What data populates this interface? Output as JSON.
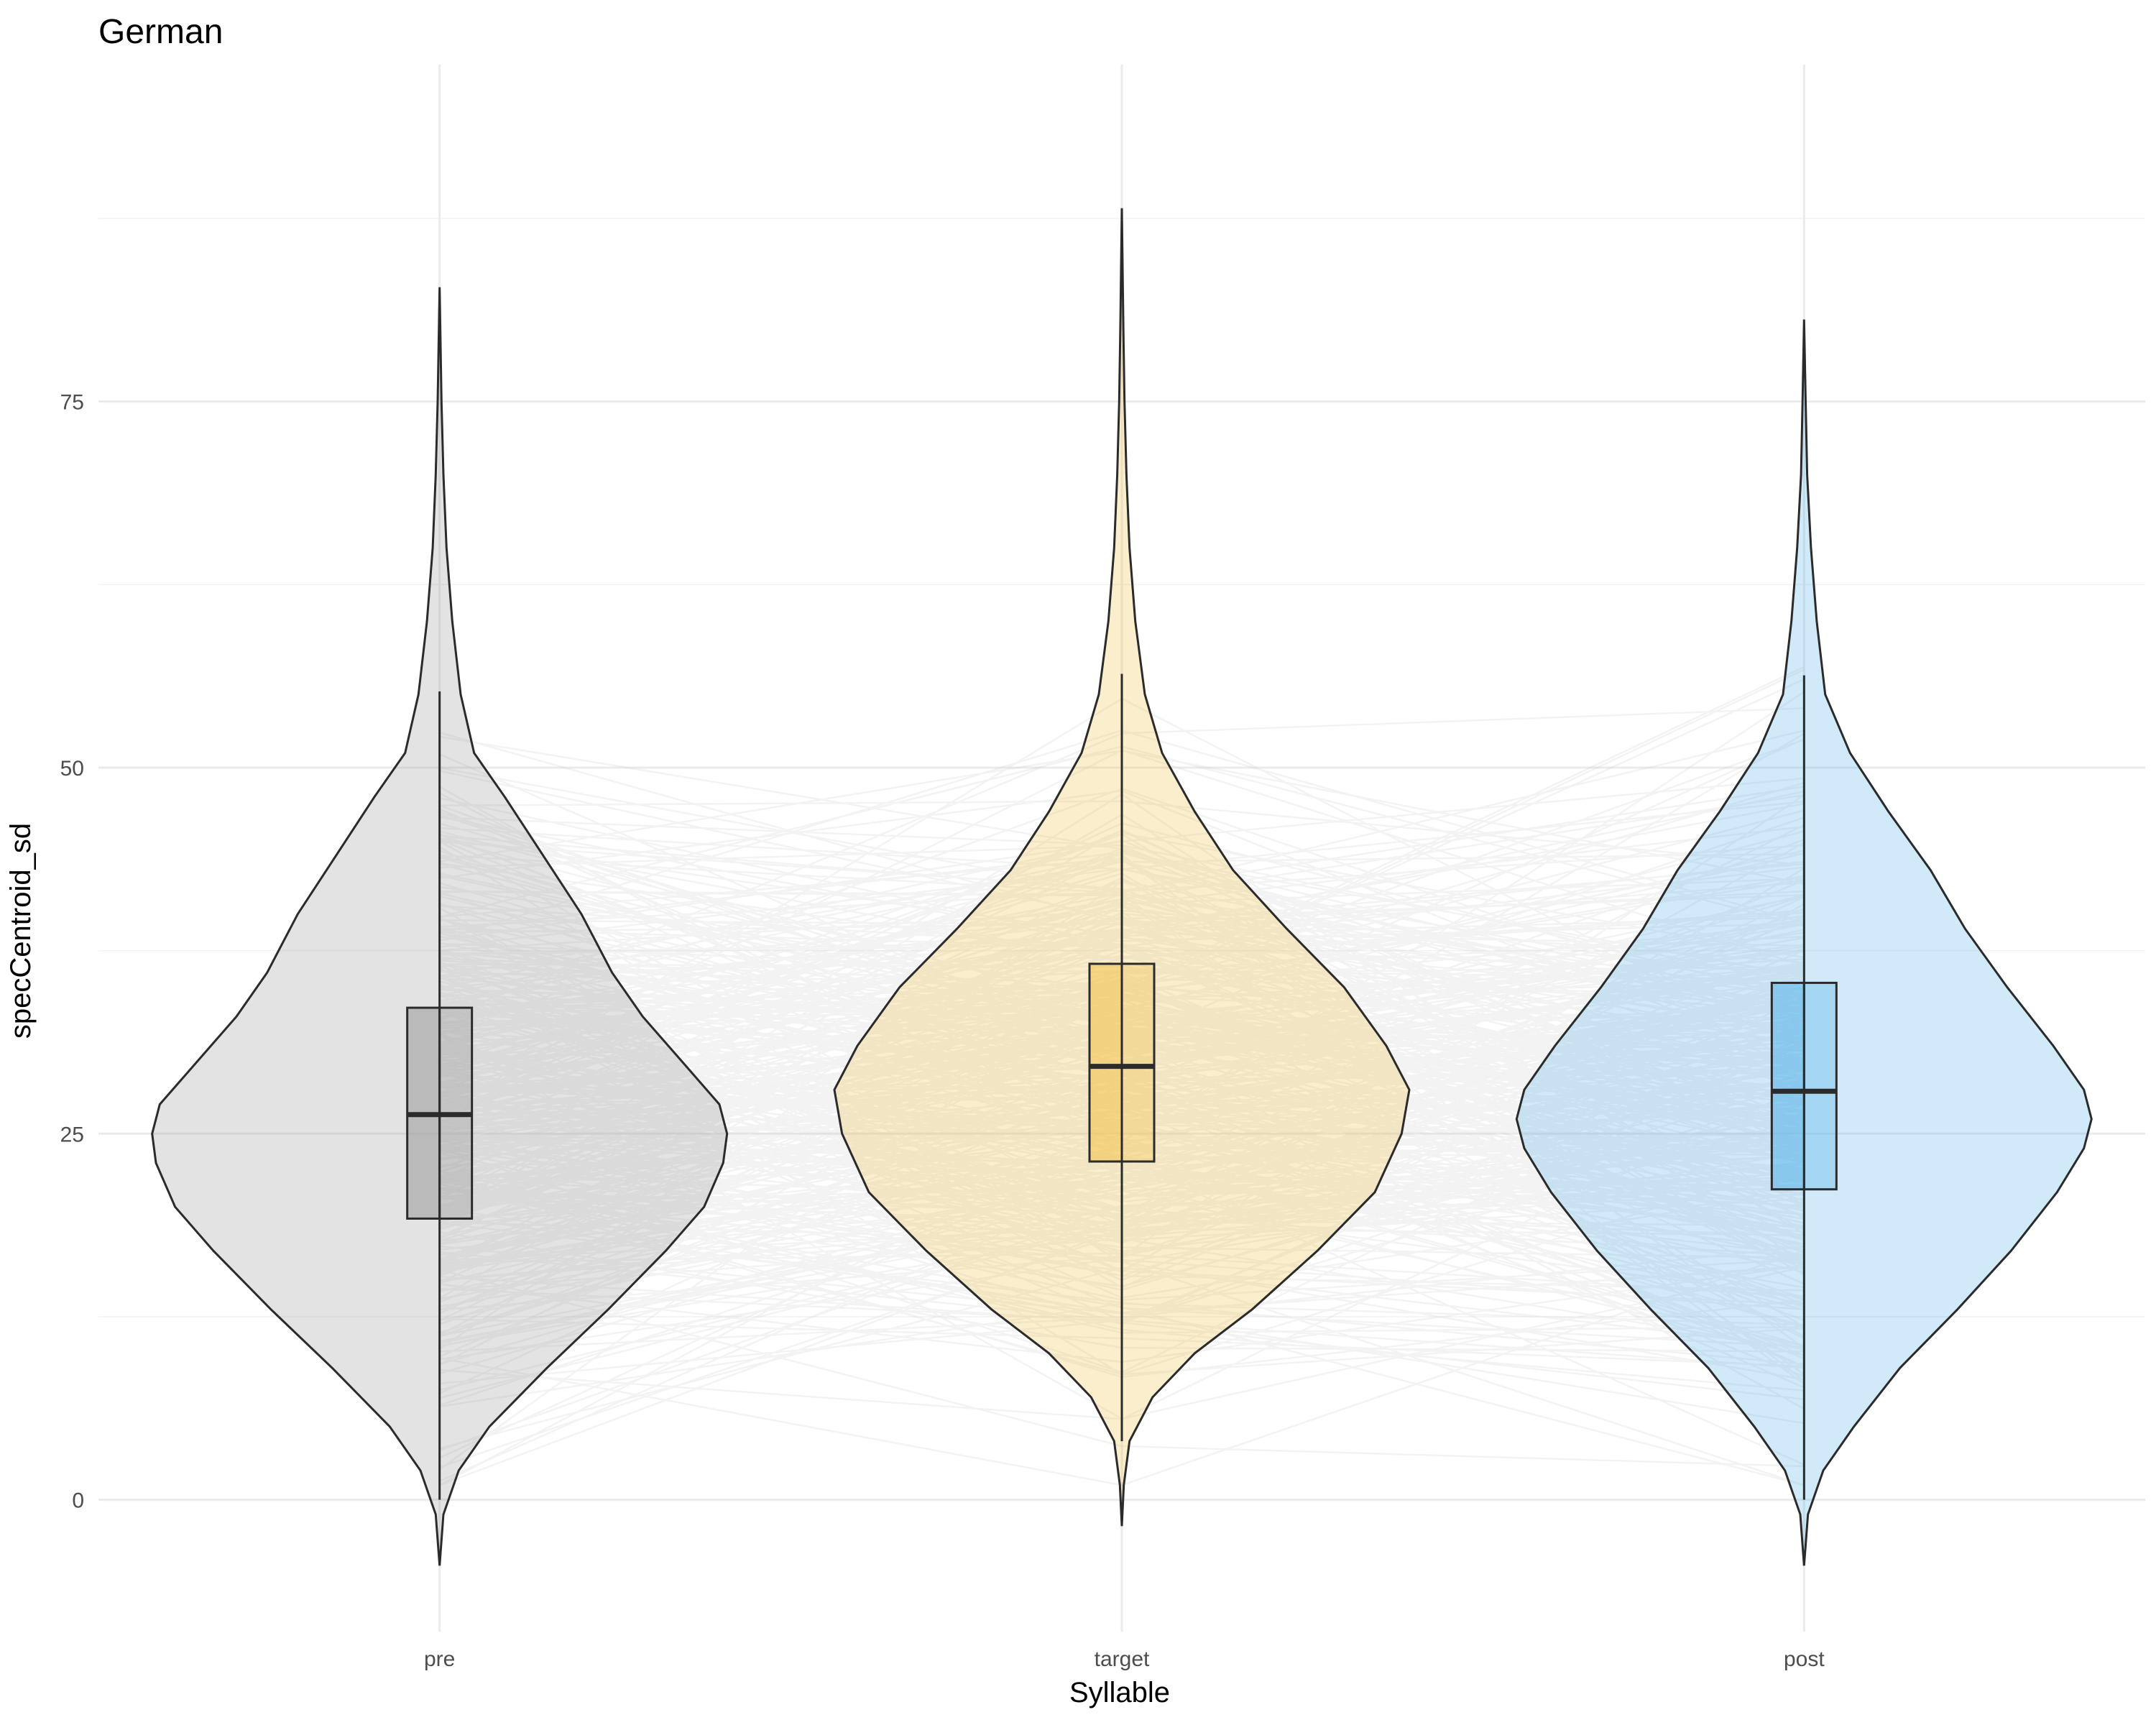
{
  "chart_data": {
    "type": "violin",
    "title": "German",
    "xlabel": "Syllable",
    "ylabel": "specCentroid_sd",
    "categories": [
      "pre",
      "target",
      "post"
    ],
    "y_ticks": [
      0,
      25,
      50,
      75
    ],
    "ylim": [
      -9,
      98
    ],
    "grid": true,
    "legend": "none",
    "groups": [
      {
        "category": "pre",
        "fill": "#999999",
        "box": {
          "whisker_low": 0,
          "q1": 19.2,
          "median": 26.3,
          "q3": 33.6,
          "whisker_high": 55.2
        },
        "violin_min": -4.5,
        "violin_max": 82.8,
        "density_profile": [
          [
            -4.5,
            0.0
          ],
          [
            -1,
            0.1
          ],
          [
            2,
            0.5
          ],
          [
            5,
            1.3
          ],
          [
            9,
            2.8
          ],
          [
            13,
            4.4
          ],
          [
            17,
            5.9
          ],
          [
            20,
            6.9
          ],
          [
            23,
            7.4
          ],
          [
            25,
            7.5
          ],
          [
            27,
            7.3
          ],
          [
            30,
            6.3
          ],
          [
            33,
            5.3
          ],
          [
            36,
            4.5
          ],
          [
            40,
            3.7
          ],
          [
            44,
            2.7
          ],
          [
            48,
            1.7
          ],
          [
            51,
            0.9
          ],
          [
            55,
            0.55
          ],
          [
            60,
            0.33
          ],
          [
            65,
            0.18
          ],
          [
            70,
            0.1
          ],
          [
            75,
            0.05
          ],
          [
            82.8,
            0.0
          ]
        ]
      },
      {
        "category": "target",
        "fill": "#f0c24a",
        "box": {
          "whisker_low": 4,
          "q1": 23.1,
          "median": 29.6,
          "q3": 36.6,
          "whisker_high": 56.4
        },
        "violin_min": -1.8,
        "violin_max": 88.2,
        "density_profile": [
          [
            -1.8,
            0.0
          ],
          [
            1,
            0.05
          ],
          [
            4,
            0.2
          ],
          [
            7,
            0.8
          ],
          [
            10,
            1.9
          ],
          [
            13,
            3.4
          ],
          [
            17,
            5.1
          ],
          [
            21,
            6.6
          ],
          [
            25,
            7.3
          ],
          [
            28,
            7.5
          ],
          [
            31,
            6.9
          ],
          [
            35,
            5.8
          ],
          [
            39,
            4.3
          ],
          [
            43,
            2.9
          ],
          [
            47,
            1.9
          ],
          [
            51,
            1.05
          ],
          [
            55,
            0.6
          ],
          [
            60,
            0.35
          ],
          [
            65,
            0.2
          ],
          [
            70,
            0.12
          ],
          [
            75,
            0.07
          ],
          [
            80,
            0.04
          ],
          [
            88.2,
            0.0
          ]
        ]
      },
      {
        "category": "post",
        "fill": "#56b4e9",
        "box": {
          "whisker_low": 0,
          "q1": 21.2,
          "median": 27.9,
          "q3": 35.3,
          "whisker_high": 56.3
        },
        "violin_min": -4.5,
        "violin_max": 80.6,
        "density_profile": [
          [
            -4.5,
            0.0
          ],
          [
            -1,
            0.1
          ],
          [
            2,
            0.5
          ],
          [
            5,
            1.3
          ],
          [
            9,
            2.5
          ],
          [
            13,
            4.0
          ],
          [
            17,
            5.4
          ],
          [
            21,
            6.6
          ],
          [
            24,
            7.3
          ],
          [
            26,
            7.5
          ],
          [
            28,
            7.3
          ],
          [
            31,
            6.5
          ],
          [
            35,
            5.3
          ],
          [
            39,
            4.2
          ],
          [
            43,
            3.3
          ],
          [
            47,
            2.2
          ],
          [
            51,
            1.2
          ],
          [
            55,
            0.55
          ],
          [
            60,
            0.33
          ],
          [
            65,
            0.18
          ],
          [
            70,
            0.08
          ],
          [
            75,
            0.04
          ],
          [
            80.6,
            0.0
          ]
        ]
      }
    ]
  }
}
